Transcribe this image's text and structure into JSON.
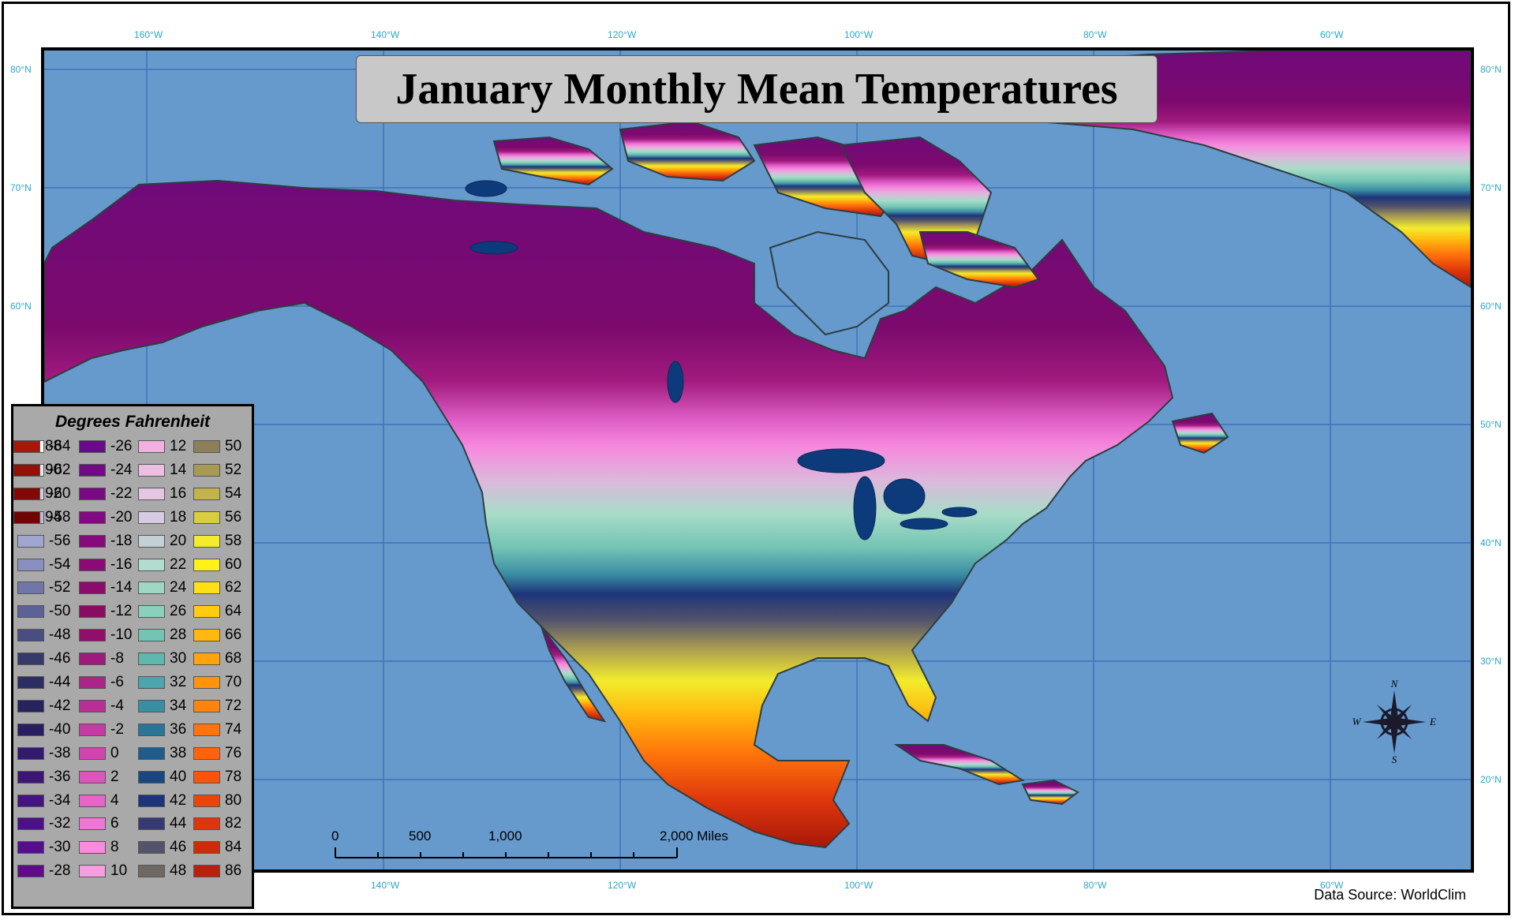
{
  "title": "January Monthly Mean Temperatures",
  "legend": {
    "title": "Degrees Fahrenheit",
    "items": [
      {
        "label": "-64",
        "color": "#ffffff"
      },
      {
        "label": "-62",
        "color": "#e6e6f0"
      },
      {
        "label": "-60",
        "color": "#cfcfe6"
      },
      {
        "label": "-58",
        "color": "#b8bcdc"
      },
      {
        "label": "-56",
        "color": "#a0a6cf"
      },
      {
        "label": "-54",
        "color": "#8a8fbf"
      },
      {
        "label": "-52",
        "color": "#7176a8"
      },
      {
        "label": "-50",
        "color": "#5c6196"
      },
      {
        "label": "-48",
        "color": "#494d80"
      },
      {
        "label": "-46",
        "color": "#363a6a"
      },
      {
        "label": "-44",
        "color": "#2b2d63"
      },
      {
        "label": "-42",
        "color": "#27235e"
      },
      {
        "label": "-40",
        "color": "#2a1d62"
      },
      {
        "label": "-38",
        "color": "#321a6c"
      },
      {
        "label": "-36",
        "color": "#3b1676"
      },
      {
        "label": "-34",
        "color": "#441480"
      },
      {
        "label": "-32",
        "color": "#4d1186"
      },
      {
        "label": "-30",
        "color": "#570e8a"
      },
      {
        "label": "-28",
        "color": "#600b8c"
      },
      {
        "label": "-26",
        "color": "#690a8c"
      },
      {
        "label": "-24",
        "color": "#720a88"
      },
      {
        "label": "-22",
        "color": "#7a0a84"
      },
      {
        "label": "-20",
        "color": "#800a80"
      },
      {
        "label": "-18",
        "color": "#860a7b"
      },
      {
        "label": "-16",
        "color": "#8a0b74"
      },
      {
        "label": "-14",
        "color": "#8c0c6c"
      },
      {
        "label": "-12",
        "color": "#8a0c62"
      },
      {
        "label": "-10",
        "color": "#910f6a"
      },
      {
        "label": "-8",
        "color": "#9e1a7c"
      },
      {
        "label": "-6",
        "color": "#ac2488"
      },
      {
        "label": "-4",
        "color": "#b92e95"
      },
      {
        "label": "-2",
        "color": "#c53aa3"
      },
      {
        "label": "0",
        "color": "#d046b0"
      },
      {
        "label": "2",
        "color": "#db55bd"
      },
      {
        "label": "4",
        "color": "#e565c9"
      },
      {
        "label": "6",
        "color": "#f076d6"
      },
      {
        "label": "8",
        "color": "#f98ae0"
      },
      {
        "label": "10",
        "color": "#f79ee0"
      },
      {
        "label": "12",
        "color": "#f2afe0"
      },
      {
        "label": "14",
        "color": "#ecbfe2"
      },
      {
        "label": "16",
        "color": "#e4c6e2"
      },
      {
        "label": "18",
        "color": "#d6cbe0"
      },
      {
        "label": "20",
        "color": "#c3d0d4"
      },
      {
        "label": "22",
        "color": "#b2dcd0"
      },
      {
        "label": "24",
        "color": "#9ed8c4"
      },
      {
        "label": "26",
        "color": "#8ad0bc"
      },
      {
        "label": "28",
        "color": "#74c4b4"
      },
      {
        "label": "30",
        "color": "#5fb8b0"
      },
      {
        "label": "32",
        "color": "#4ca4ac"
      },
      {
        "label": "34",
        "color": "#3a8ea4"
      },
      {
        "label": "36",
        "color": "#2a7498"
      },
      {
        "label": "38",
        "color": "#1e5c8c"
      },
      {
        "label": "40",
        "color": "#1a4682"
      },
      {
        "label": "42",
        "color": "#1e347a"
      },
      {
        "label": "44",
        "color": "#363a74"
      },
      {
        "label": "46",
        "color": "#53546c"
      },
      {
        "label": "48",
        "color": "#6e6864"
      },
      {
        "label": "50",
        "color": "#8c805a"
      },
      {
        "label": "52",
        "color": "#a89a52"
      },
      {
        "label": "54",
        "color": "#c2b44a"
      },
      {
        "label": "56",
        "color": "#d8cc40"
      },
      {
        "label": "58",
        "color": "#f2ec2c"
      },
      {
        "label": "60",
        "color": "#fff21a"
      },
      {
        "label": "62",
        "color": "#ffe014"
      },
      {
        "label": "64",
        "color": "#ffcc10"
      },
      {
        "label": "66",
        "color": "#ffb80e"
      },
      {
        "label": "68",
        "color": "#ffa40c"
      },
      {
        "label": "70",
        "color": "#ff940c"
      },
      {
        "label": "72",
        "color": "#ff840c"
      },
      {
        "label": "74",
        "color": "#ff740c"
      },
      {
        "label": "76",
        "color": "#ff640c"
      },
      {
        "label": "78",
        "color": "#f8540c"
      },
      {
        "label": "80",
        "color": "#ec440c"
      },
      {
        "label": "82",
        "color": "#de360c"
      },
      {
        "label": "84",
        "color": "#ce2a0c"
      },
      {
        "label": "86",
        "color": "#bc200c"
      },
      {
        "label": "88",
        "color": "#a8180a"
      },
      {
        "label": "90",
        "color": "#941008"
      },
      {
        "label": "92",
        "color": "#820a06"
      },
      {
        "label": "94",
        "color": "#700404"
      }
    ]
  },
  "graticule": {
    "longitudes": [
      "160°W",
      "140°W",
      "120°W",
      "100°W",
      "80°W",
      "60°W"
    ],
    "latitudes": [
      "80°N",
      "70°N",
      "60°N",
      "50°N",
      "40°N",
      "30°N",
      "20°N"
    ],
    "bottom_longitudes": [
      "140°W",
      "120°W",
      "100°W",
      "80°W",
      "60°W"
    ]
  },
  "scale_bar": {
    "labels": [
      "0",
      "500",
      "1,000",
      "2,000 Miles"
    ]
  },
  "compass": {
    "n": "N",
    "s": "S",
    "e": "E",
    "w": "W"
  },
  "source": "Data Source: WorldClim",
  "colors": {
    "ocean": "#6699cc",
    "graticule": "#3f72b8",
    "label": "#2aa7c9"
  }
}
